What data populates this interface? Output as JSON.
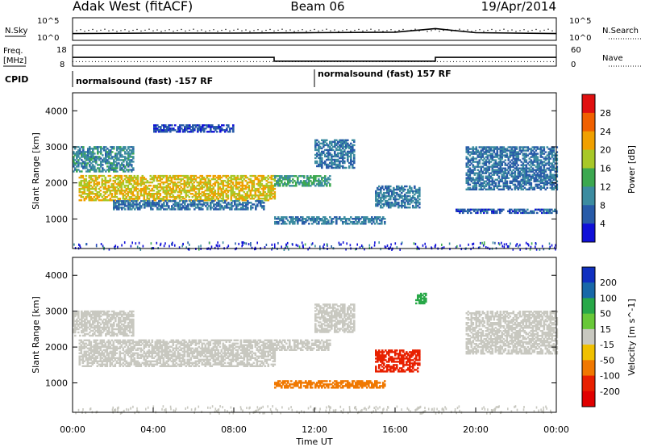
{
  "header": {
    "station": "Adak West (fitACF)",
    "beam": "Beam 06",
    "date": "19/Apr/2014"
  },
  "panels": {
    "sky_label": "N.Sky",
    "search_label": "N.Search",
    "sky_scale": [
      "10^5",
      "10^0"
    ],
    "search_scale": [
      "10^5",
      "10^0"
    ],
    "freq_label": "Freq.",
    "freq_unit": "[MHz]",
    "freq_ticks": [
      "18",
      "8"
    ],
    "nave_label": "Nave",
    "nave_ticks": [
      "60",
      "0"
    ],
    "cpid_label": "CPID",
    "cpid_left": "normalsound (fast) -157 RF",
    "cpid_right": "normalsound (fast) 157 RF"
  },
  "chart_data": [
    {
      "type": "line",
      "name": "noise",
      "x": [
        "00:00",
        "04:00",
        "08:00",
        "12:00",
        "16:00",
        "18:00",
        "20:00",
        "24:00"
      ],
      "series": [
        {
          "name": "N.Sky",
          "values": [
            1.5,
            1.6,
            1.6,
            1.7,
            1.8,
            2.6,
            1.7,
            1.5
          ]
        }
      ],
      "ylim": [
        0,
        5
      ],
      "scale": "log10"
    },
    {
      "type": "line",
      "name": "freq-nave",
      "x": [
        "00:00",
        "10:00",
        "10:00",
        "18:00",
        "18:00",
        "24:00"
      ],
      "series": [
        {
          "name": "Freq.",
          "values": [
            12.2,
            12.2,
            10.4,
            10.4,
            12.2,
            12.2
          ]
        },
        {
          "name": "Nave",
          "values": [
            13,
            13,
            13,
            13,
            13,
            13
          ]
        }
      ]
    },
    {
      "type": "heatmap",
      "name": "power",
      "xlabel": "",
      "ylabel": "Slant Range [km]",
      "xlim": [
        0,
        24
      ],
      "ylim": [
        180,
        4500
      ],
      "yticks": [
        "1000",
        "2000",
        "3000",
        "4000"
      ],
      "colorbar": {
        "label": "Power [dB]",
        "ticks": [
          "4",
          "8",
          "12",
          "16",
          "20",
          "24",
          "28"
        ],
        "colors": [
          "#1010d8",
          "#285ba8",
          "#3c8ca0",
          "#3ca850",
          "#a8c828",
          "#f0a000",
          "#f06000",
          "#e01010"
        ],
        "range": [
          0,
          32
        ]
      },
      "bands": [
        {
          "t": [
            0.3,
            10.0
          ],
          "r": [
            1500,
            2200
          ],
          "v": 20
        },
        {
          "t": [
            0.0,
            3.0
          ],
          "r": [
            2300,
            3000
          ],
          "v": 10
        },
        {
          "t": [
            2.0,
            9.5
          ],
          "r": [
            1250,
            1500
          ],
          "v": 8
        },
        {
          "t": [
            10.0,
            12.8
          ],
          "r": [
            1900,
            2200
          ],
          "v": 12
        },
        {
          "t": [
            10.0,
            15.5
          ],
          "r": [
            850,
            1050
          ],
          "v": 9
        },
        {
          "t": [
            12.0,
            14.0
          ],
          "r": [
            2400,
            3200
          ],
          "v": 8
        },
        {
          "t": [
            15.0,
            17.2
          ],
          "r": [
            1300,
            1900
          ],
          "v": 9
        },
        {
          "t": [
            19.5,
            24.0
          ],
          "r": [
            1800,
            3000
          ],
          "v": 8
        },
        {
          "t": [
            19.0,
            24.0
          ],
          "r": [
            1150,
            1250
          ],
          "v": 6
        },
        {
          "t": [
            4.0,
            8.0
          ],
          "r": [
            3400,
            3600
          ],
          "v": 5
        }
      ]
    },
    {
      "type": "heatmap",
      "name": "velocity",
      "xlabel": "Time UT",
      "ylabel": "Slant Range [km]",
      "xlim": [
        0,
        24
      ],
      "ylim": [
        180,
        4500
      ],
      "xticks": [
        "00:00",
        "04:00",
        "08:00",
        "12:00",
        "16:00",
        "20:00",
        "00:00"
      ],
      "yticks": [
        "1000",
        "2000",
        "3000",
        "4000"
      ],
      "colorbar": {
        "label": "Velocity [m s^-1]",
        "ticks": [
          "200",
          "100",
          "50",
          "15",
          "-15",
          "-50",
          "-100",
          "-200"
        ],
        "colors": [
          "#1030c0",
          "#1868a8",
          "#28a848",
          "#68c838",
          "#c8c8c0",
          "#f0c000",
          "#f07800",
          "#e82000",
          "#e00000"
        ]
      },
      "bands": [
        {
          "t": [
            0.3,
            10.0
          ],
          "r": [
            1450,
            2200
          ],
          "v": 0
        },
        {
          "t": [
            0.0,
            3.0
          ],
          "r": [
            2300,
            3000
          ],
          "v": 0
        },
        {
          "t": [
            10.0,
            12.8
          ],
          "r": [
            1900,
            2200
          ],
          "v": 0
        },
        {
          "t": [
            10.0,
            15.5
          ],
          "r": [
            850,
            1050
          ],
          "v": -50
        },
        {
          "t": [
            12.0,
            14.0
          ],
          "r": [
            2400,
            3200
          ],
          "v": 0
        },
        {
          "t": [
            15.0,
            17.2
          ],
          "r": [
            1300,
            1900
          ],
          "v": -120
        },
        {
          "t": [
            19.5,
            24.0
          ],
          "r": [
            1800,
            3000
          ],
          "v": 0
        },
        {
          "t": [
            17.0,
            17.5
          ],
          "r": [
            3200,
            3500
          ],
          "v": 40
        }
      ]
    }
  ]
}
